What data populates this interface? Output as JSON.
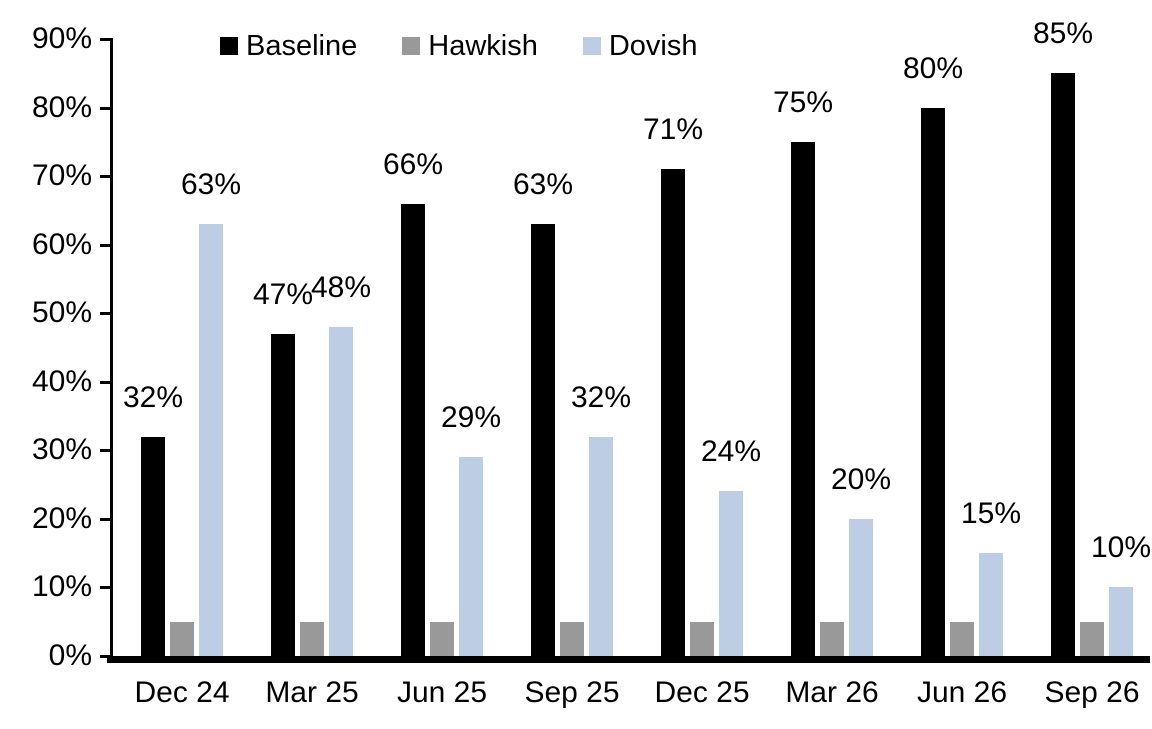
{
  "chart_data": {
    "type": "bar",
    "title": "",
    "xlabel": "",
    "ylabel": "",
    "categories": [
      "Dec 24",
      "Mar 25",
      "Jun 25",
      "Sep 25",
      "Dec 25",
      "Mar 26",
      "Jun 26",
      "Sep 26"
    ],
    "series": [
      {
        "name": "Baseline",
        "color": "#000000",
        "values": [
          32,
          47,
          66,
          63,
          71,
          75,
          80,
          85
        ],
        "labels": [
          "32%",
          "47%",
          "66%",
          "63%",
          "71%",
          "75%",
          "80%",
          "85%"
        ]
      },
      {
        "name": "Hawkish",
        "color": "#999999",
        "values": [
          5,
          5,
          5,
          5,
          5,
          5,
          5,
          5
        ],
        "labels": [
          "",
          "",
          "",
          "",
          "",
          "",
          "",
          ""
        ]
      },
      {
        "name": "Dovish",
        "color": "#BCCDE4",
        "values": [
          63,
          48,
          29,
          32,
          24,
          20,
          15,
          10
        ],
        "labels": [
          "63%",
          "48%",
          "29%",
          "32%",
          "24%",
          "20%",
          "15%",
          "10%"
        ]
      }
    ],
    "ylim": [
      0,
      90
    ],
    "ytick_step": 10,
    "ytick_labels": [
      "0%",
      "10%",
      "20%",
      "30%",
      "40%",
      "50%",
      "60%",
      "70%",
      "80%",
      "90%"
    ],
    "legend_position": "top",
    "grid": false,
    "axis_color": "#000000",
    "background_color": "#ffffff"
  }
}
